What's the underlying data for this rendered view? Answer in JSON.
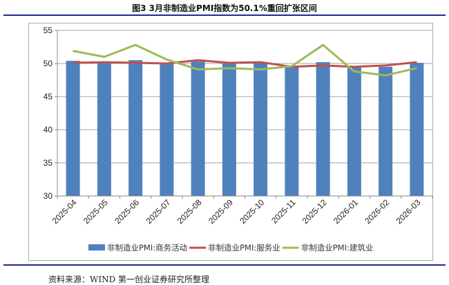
{
  "title": "图3  3月非制造业PMI指数为50.1%重回扩张区间",
  "source": "资料来源：WIND   第一创业证券研究所整理",
  "chart_data": {
    "type": "bar",
    "categories": [
      "2025-04",
      "2025-05",
      "2025-06",
      "2025-07",
      "2025-08",
      "2025-09",
      "2025-10",
      "2025-11",
      "2025-12",
      "2026-01",
      "2026-02",
      "2026-03"
    ],
    "ylim": [
      30,
      55
    ],
    "yticks": [
      30,
      35,
      40,
      45,
      50,
      55
    ],
    "grid": true,
    "legend": "bottom",
    "series": [
      {
        "name": "非制造业PMI:商务活动",
        "kind": "bar",
        "color": "#4f81bd",
        "values": [
          50.4,
          50.3,
          50.5,
          50.1,
          50.3,
          50.0,
          50.1,
          49.5,
          50.2,
          49.4,
          49.5,
          50.1
        ]
      },
      {
        "name": "非制造业PMI:服务业",
        "kind": "line",
        "color": "#c0504d",
        "values": [
          50.1,
          50.2,
          50.1,
          50.0,
          50.5,
          50.1,
          50.2,
          49.5,
          49.7,
          49.5,
          49.7,
          50.2
        ]
      },
      {
        "name": "非制造业PMI:建筑业",
        "kind": "line",
        "color": "#9bbb59",
        "values": [
          51.9,
          51.0,
          52.8,
          50.6,
          49.1,
          49.3,
          49.1,
          49.6,
          52.8,
          48.8,
          48.2,
          49.3
        ]
      }
    ]
  }
}
